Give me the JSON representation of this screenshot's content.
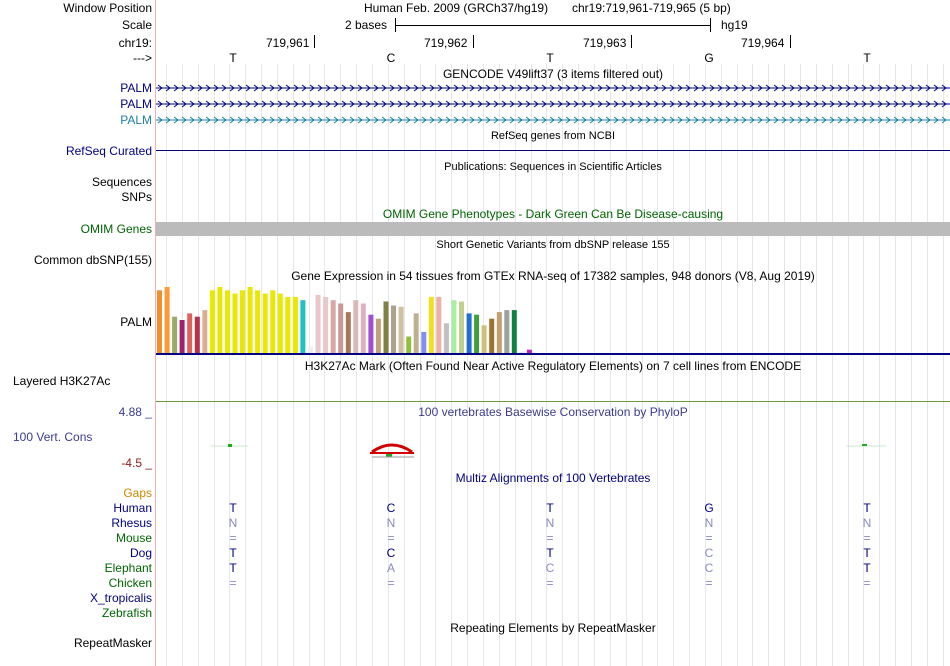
{
  "colors": {
    "navy": "#000080",
    "palm3": "#1c7fa8",
    "omim_green": "#006400",
    "grey_bar": "#bbbbbb",
    "gaps_orange": "#cc8800",
    "cons_red": "#8b1a1a",
    "phylop_blue": "#3b3b8f",
    "h3k_green": "#6a9a3a"
  },
  "labels": {
    "window_position": "Window Position",
    "scale": "Scale",
    "chrom": "chr19:",
    "arrow": "--->",
    "palm1": "PALM",
    "palm2": "PALM",
    "palm3": "PALM",
    "refseq": "RefSeq Curated",
    "sequences": "Sequences",
    "snps": "SNPs",
    "omim": "OMIM Genes",
    "dbsnp": "Common dbSNP(155)",
    "gtex": "PALM",
    "h3k27ac": "Layered H3K27Ac",
    "cons_max": "4.88 _",
    "cons": "100 Vert. Cons",
    "cons_min": "-4.5 _",
    "gaps": "Gaps",
    "species": [
      "Human",
      "Rhesus",
      "Mouse",
      "Dog",
      "Elephant",
      "Chicken",
      "X_tropicalis",
      "Zebrafish"
    ],
    "repeatmasker": "RepeatMasker"
  },
  "header": {
    "assembly": "Human Feb. 2009 (GRCh37/hg19)",
    "position": "chr19:719,961-719,965 (5 bp)",
    "scale_text": "2 bases",
    "scale_db": "hg19",
    "coords": [
      "719,961",
      "719,962",
      "719,963",
      "719,964"
    ],
    "bases": [
      "T",
      "C",
      "T",
      "G",
      "T"
    ]
  },
  "tracks": {
    "gencode_title": "GENCODE V49lift37 (3 items filtered out)",
    "refseq_title": "RefSeq genes from NCBI",
    "pubs_title": "Publications: Sequences in Scientific Articles",
    "omim_title": "OMIM Gene Phenotypes - Dark Green Can Be Disease-causing",
    "dbsnp_title": "Short Genetic Variants from dbSNP release 155",
    "gtex_title": "Gene Expression in 54 tissues from GTEx RNA-seq of 17382 samples, 948 donors (V8, Aug 2019)",
    "h3k_title": "H3K27Ac Mark (Often Found Near Active Regulatory Elements) on 7 cell lines from ENCODE",
    "phylop_title": "100 vertebrates Basewise Conservation by PhyloP",
    "multiz_title": "Multiz Alignments of 100 Vertebrates",
    "rmsk_title": "Repeating Elements by RepeatMasker"
  },
  "alignment": [
    [
      "T",
      "C",
      "T",
      "G",
      "T"
    ],
    [
      "N",
      "N",
      "N",
      "N",
      "N"
    ],
    [
      "=",
      "=",
      "=",
      "=",
      "="
    ],
    [
      "T",
      "C",
      "T",
      "C",
      "T"
    ],
    [
      "T",
      "A",
      "C",
      "C",
      "T"
    ],
    [
      "=",
      "=",
      "=",
      "=",
      "="
    ],
    [
      "",
      "",
      "",
      "",
      ""
    ],
    [
      "",
      "",
      "",
      "",
      ""
    ]
  ],
  "gtex_colors": [
    "#f28e2b",
    "#ff9a36",
    "#9aaa6a",
    "#a0206a",
    "#e0605a",
    "#b83050",
    "#d8b090",
    "#e8e800",
    "#e8e800",
    "#e8e800",
    "#e8e800",
    "#e8e800",
    "#e8e800",
    "#e8e800",
    "#e8e800",
    "#e8e800",
    "#e8e800",
    "#e8e800",
    "#e8e800",
    "#20c0c8",
    "#f0f0f0",
    "#e8c8c8",
    "#e8c8c8",
    "#d8a8a8",
    "#c89898",
    "#a87858",
    "#d8b8b8",
    "#e0b0c0",
    "#a050d0",
    "#c0a080",
    "#808040",
    "#b0a090",
    "#d0c0a0",
    "#90c040",
    "#c0b090",
    "#8090f0",
    "#f0e020",
    "#f0b0a8",
    "#c0c0c0",
    "#a8f0a0",
    "#c0d090",
    "#2070d0",
    "#40a040",
    "#d0c080",
    "#a07030",
    "#c0a070",
    "#a0a0a0",
    "#108040",
    "#e8e8e8",
    "#c020c0"
  ],
  "gtex_values": [
    0.95,
    1.0,
    0.55,
    0.5,
    0.6,
    0.55,
    0.65,
    0.95,
    1.0,
    0.95,
    0.9,
    0.95,
    1.0,
    0.95,
    0.9,
    0.95,
    0.9,
    0.85,
    0.85,
    0.8,
    0.1,
    0.88,
    0.85,
    0.8,
    0.75,
    0.62,
    0.8,
    0.75,
    0.58,
    0.52,
    0.78,
    0.72,
    0.7,
    0.25,
    0.6,
    0.32,
    0.85,
    0.85,
    0.45,
    0.8,
    0.78,
    0.6,
    0.58,
    0.42,
    0.52,
    0.62,
    0.65,
    0.65,
    0.02,
    0.05
  ]
}
